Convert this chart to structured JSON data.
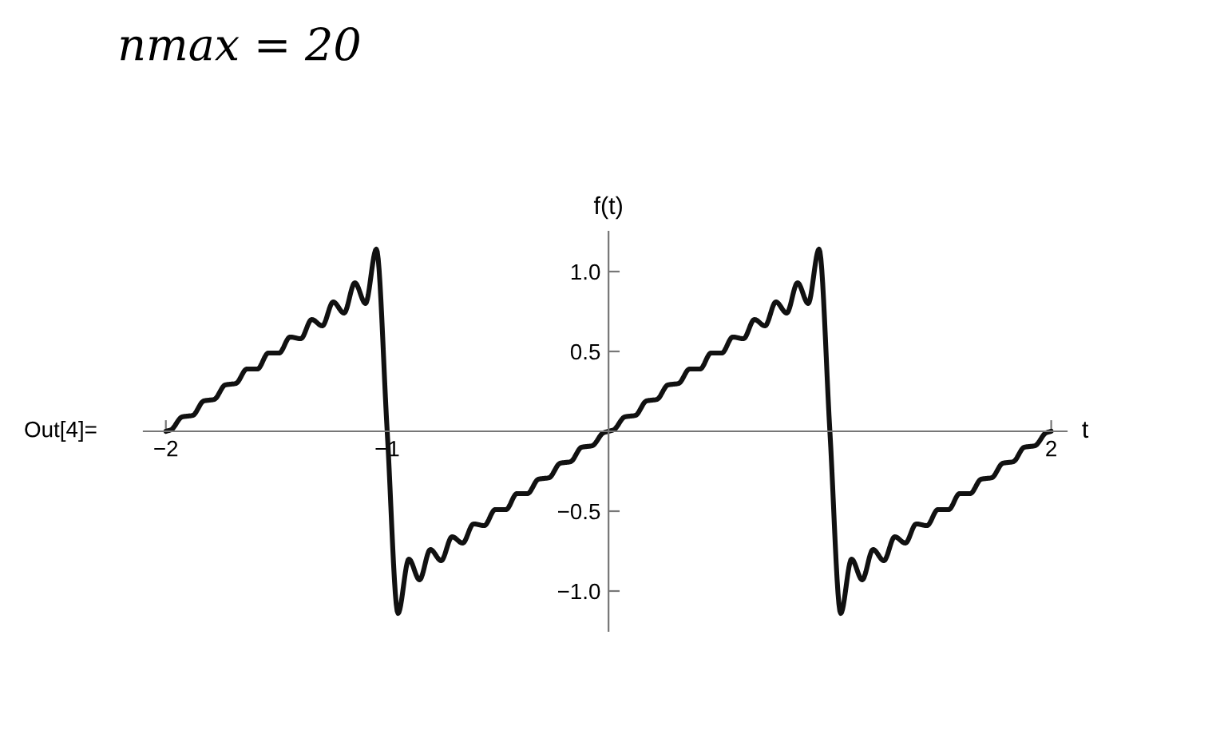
{
  "chart_data": {
    "type": "line",
    "xlabel": "t",
    "ylabel": "f(t)",
    "annotations": [
      "nmax = 20",
      "Out[4]="
    ],
    "xlim": [
      -2.1,
      2.07
    ],
    "ylim": [
      -1.25,
      1.25
    ],
    "xticks": [
      {
        "value": -2,
        "label": "−2"
      },
      {
        "value": -1,
        "label": "−1"
      },
      {
        "value": 1,
        "label": null
      },
      2
    ],
    "yticks": [
      {
        "value": -1.0,
        "label": "−1.0"
      },
      {
        "value": -0.5,
        "label": "−0.5"
      },
      {
        "value": 0.5,
        "label": "0.5"
      },
      {
        "value": 1.0,
        "label": "1.0"
      }
    ],
    "grid": false,
    "legend": false,
    "marker": "none",
    "line_style": "solid",
    "series": [
      {
        "color": "#111111",
        "x": [
          -2,
          -1.976,
          -1.927,
          -1.878,
          -1.829,
          -1.781,
          -1.732,
          -1.683,
          -1.634,
          -1.586,
          -1.537,
          -1.488,
          -1.439,
          -1.39,
          -1.341,
          -1.293,
          -1.244,
          -1.195,
          -1.146,
          -1.098,
          -1.049,
          -1,
          -0.951,
          -0.902,
          -0.854,
          -0.805,
          -0.756,
          -0.707,
          -0.659,
          -0.61,
          -0.561,
          -0.512,
          -0.463,
          -0.414,
          -0.366,
          -0.317,
          -0.268,
          -0.219,
          -0.171,
          -0.122,
          -0.073,
          -0.024,
          0,
          0.024,
          0.073,
          0.122,
          0.171,
          0.219,
          0.268,
          0.317,
          0.366,
          0.414,
          0.463,
          0.512,
          0.561,
          0.61,
          0.659,
          0.707,
          0.756,
          0.805,
          0.854,
          0.902,
          0.951,
          1,
          1.049,
          1.098,
          1.146,
          1.195,
          1.244,
          1.293,
          1.341,
          1.39,
          1.439,
          1.488,
          1.537,
          1.586,
          1.634,
          1.683,
          1.732,
          1.781,
          1.829,
          1.878,
          1.927,
          1.976,
          2
        ],
        "values": [
          0,
          0.01,
          0.09,
          0.1,
          0.19,
          0.2,
          0.29,
          0.3,
          0.39,
          0.39,
          0.49,
          0.49,
          0.59,
          0.58,
          0.7,
          0.66,
          0.81,
          0.74,
          0.93,
          0.8,
          1.14,
          0,
          -1.14,
          -0.8,
          -0.93,
          -0.74,
          -0.81,
          -0.66,
          -0.7,
          -0.58,
          -0.59,
          -0.49,
          -0.49,
          -0.39,
          -0.39,
          -0.3,
          -0.29,
          -0.2,
          -0.19,
          -0.1,
          -0.09,
          -0.01,
          0,
          0.01,
          0.09,
          0.1,
          0.19,
          0.2,
          0.29,
          0.3,
          0.39,
          0.39,
          0.49,
          0.49,
          0.59,
          0.58,
          0.7,
          0.66,
          0.81,
          0.74,
          0.93,
          0.8,
          1.14,
          0,
          -1.14,
          -0.8,
          -0.93,
          -0.74,
          -0.81,
          -0.66,
          -0.7,
          -0.58,
          -0.59,
          -0.49,
          -0.49,
          -0.39,
          -0.39,
          -0.3,
          -0.29,
          -0.2,
          -0.19,
          -0.1,
          -0.09,
          -0.01,
          0
        ]
      }
    ]
  }
}
